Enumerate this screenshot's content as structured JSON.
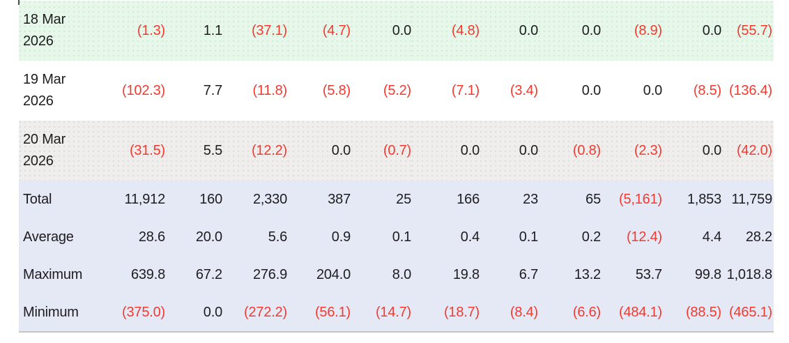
{
  "table": {
    "rows": [
      {
        "kind": "date",
        "tone": "green",
        "label": "18 Mar 2026",
        "lines": [
          "18 Mar",
          "2026"
        ],
        "values": [
          "(1.3)",
          "1.1",
          "(37.1)",
          "(4.7)",
          "0.0",
          "(4.8)",
          "0.0",
          "0.0",
          "(8.9)",
          "0.0",
          "(55.7)"
        ]
      },
      {
        "kind": "date",
        "tone": "white",
        "label": "19 Mar 2026",
        "lines": [
          "19 Mar",
          "2026"
        ],
        "values": [
          "(102.3)",
          "7.7",
          "(11.8)",
          "(5.8)",
          "(5.2)",
          "(7.1)",
          "(3.4)",
          "0.0",
          "0.0",
          "(8.5)",
          "(136.4)"
        ]
      },
      {
        "kind": "date",
        "tone": "gray",
        "label": "20 Mar 2026",
        "lines": [
          "20 Mar",
          "2026"
        ],
        "values": [
          "(31.5)",
          "5.5",
          "(12.2)",
          "0.0",
          "(0.7)",
          "0.0",
          "0.0",
          "(0.8)",
          "(2.3)",
          "0.0",
          "(42.0)"
        ]
      },
      {
        "kind": "summary",
        "tone": "blue",
        "label": "Total",
        "lines": [
          "Total"
        ],
        "values": [
          "11,912",
          "160",
          "2,330",
          "387",
          "25",
          "166",
          "23",
          "65",
          "(5,161)",
          "1,853",
          "11,759"
        ]
      },
      {
        "kind": "summary",
        "tone": "blue",
        "label": "Average",
        "lines": [
          "Average"
        ],
        "values": [
          "28.6",
          "20.0",
          "5.6",
          "0.9",
          "0.1",
          "0.4",
          "0.1",
          "0.2",
          "(12.4)",
          "4.4",
          "28.2"
        ]
      },
      {
        "kind": "summary",
        "tone": "blue",
        "label": "Maximum",
        "lines": [
          "Maximum"
        ],
        "values": [
          "639.8",
          "67.2",
          "276.9",
          "204.0",
          "8.0",
          "19.8",
          "6.7",
          "13.2",
          "53.7",
          "99.8",
          "1,018.8"
        ]
      },
      {
        "kind": "summary",
        "tone": "blue",
        "label": "Minimum",
        "lines": [
          "Minimum"
        ],
        "values": [
          "(375.0)",
          "0.0",
          "(272.2)",
          "(56.1)",
          "(14.7)",
          "(18.7)",
          "(8.4)",
          "(6.6)",
          "(484.1)",
          "(88.5)",
          "(465.1)"
        ]
      }
    ]
  },
  "colors": {
    "negative_value": "#f23a30",
    "text": "#1d1d1f",
    "row_green": "#e7f8ea",
    "row_white": "#ffffff",
    "row_gray": "#efeeec",
    "row_blue": "#e5e9f6",
    "table_bottom_border": "#c9c5bb"
  }
}
